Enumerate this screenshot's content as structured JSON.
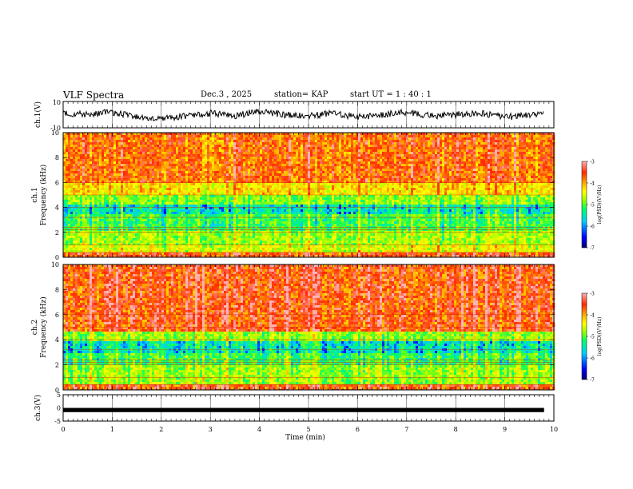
{
  "header": {
    "title": "VLF Spectra",
    "date": "Dec.3 , 2025",
    "station": "station= KAP",
    "start_ut": "start UT = 1 : 40 : 1"
  },
  "colors": {
    "waveform": "#000000",
    "axis": "#000000",
    "colormap": [
      "#000070",
      "#0000ff",
      "#00ccff",
      "#00ff66",
      "#99ff00",
      "#ffff00",
      "#ffaa00",
      "#ff2a00",
      "#ffb3b3"
    ]
  },
  "chart_data": [
    {
      "id": "ch1-waveform",
      "type": "line",
      "ylabel": "ch.1(V)",
      "ylim": [
        -10,
        10
      ],
      "y_tick_labels": [
        "10",
        "-10"
      ],
      "xlim": [
        0,
        10
      ],
      "grid": true,
      "description_series": "noisy waveform, roughly -5 V to +5 V",
      "x": [
        0,
        0.5,
        1,
        1.5,
        2,
        2.5,
        3,
        3.5,
        4,
        4.5,
        5,
        5.5,
        6,
        6.5,
        7,
        7.5,
        8,
        8.5,
        9,
        9.5,
        9.8
      ],
      "y": [
        1,
        0,
        2,
        -2,
        -3,
        -1,
        1,
        -1,
        3,
        0,
        -1,
        1,
        -2,
        0,
        2,
        -1,
        0,
        1,
        -2,
        0,
        1
      ]
    },
    {
      "id": "ch1-spectrogram",
      "type": "heatmap",
      "ylabel": "ch.1 Frequency (kHz)",
      "ylabel_lines": [
        "ch.1",
        "Frequency (kHz)"
      ],
      "ylim": [
        0,
        10
      ],
      "y_ticks": [
        0,
        2,
        4,
        6,
        8,
        10
      ],
      "xlim": [
        0,
        10
      ],
      "colorbar": {
        "label": "log(PSD)(V²/Hz)",
        "ticks": [
          -3,
          -4,
          -5,
          -6,
          -7
        ],
        "range": [
          -7,
          -3
        ]
      },
      "bands_khz": [
        {
          "from": 0,
          "to": 0.4,
          "log_psd": -3.6
        },
        {
          "from": 0.4,
          "to": 1.0,
          "log_psd": -4.7
        },
        {
          "from": 1.0,
          "to": 2.2,
          "log_psd": -5.0
        },
        {
          "from": 2.2,
          "to": 3.4,
          "log_psd": -5.4
        },
        {
          "from": 3.4,
          "to": 4.2,
          "log_psd": -5.8
        },
        {
          "from": 4.2,
          "to": 5.0,
          "log_psd": -5.1
        },
        {
          "from": 5.0,
          "to": 6.0,
          "log_psd": -4.4
        },
        {
          "from": 6.0,
          "to": 10.0,
          "log_psd": -3.8
        }
      ]
    },
    {
      "id": "ch2-spectrogram",
      "type": "heatmap",
      "ylabel": "ch.2 Frequency (kHz)",
      "ylabel_lines": [
        "ch.2",
        "Frequency (kHz)"
      ],
      "ylim": [
        0,
        10
      ],
      "y_ticks": [
        0,
        2,
        4,
        6,
        8,
        10
      ],
      "xlim": [
        0,
        10
      ],
      "colorbar": {
        "label": "log(PSD)(V²/Hz)",
        "ticks": [
          -3,
          -4,
          -5,
          -6,
          -7
        ],
        "range": [
          -7,
          -3
        ]
      },
      "bands_khz": [
        {
          "from": 0,
          "to": 0.4,
          "log_psd": -3.6
        },
        {
          "from": 0.4,
          "to": 2.0,
          "log_psd": -5.0
        },
        {
          "from": 2.0,
          "to": 3.0,
          "log_psd": -5.4
        },
        {
          "from": 3.0,
          "to": 3.8,
          "log_psd": -5.8
        },
        {
          "from": 3.8,
          "to": 4.6,
          "log_psd": -5.0
        },
        {
          "from": 4.6,
          "to": 10.0,
          "log_psd": -3.6
        }
      ]
    },
    {
      "id": "ch3-waveform",
      "type": "line",
      "ylabel": "ch.3(V)",
      "ylim": [
        -5,
        5
      ],
      "y_tick_labels": [
        "5",
        "0",
        "-5"
      ],
      "xlim": [
        0,
        10
      ],
      "xlabel": "Time (min)",
      "x_ticks": [
        0,
        1,
        2,
        3,
        4,
        5,
        6,
        7,
        8,
        9,
        10
      ],
      "grid": true,
      "band_range": [
        -1,
        0
      ]
    }
  ]
}
